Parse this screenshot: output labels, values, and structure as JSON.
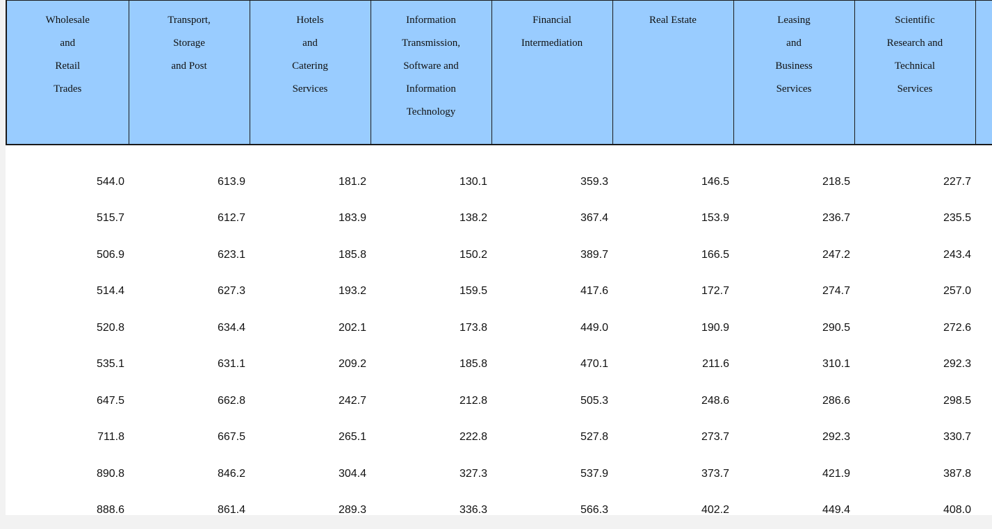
{
  "table": {
    "columns": [
      {
        "key": "wholesale",
        "lines": [
          "Wholesale",
          "and",
          "Retail",
          "Trades"
        ]
      },
      {
        "key": "transport",
        "lines": [
          "Transport,",
          "Storage",
          "and Post"
        ]
      },
      {
        "key": "hotels",
        "lines": [
          "Hotels",
          "and",
          "Catering",
          "Services"
        ]
      },
      {
        "key": "information",
        "lines": [
          "Information",
          "Transmission,",
          "Software and",
          "Information",
          "Technology"
        ]
      },
      {
        "key": "financial",
        "lines": [
          "Financial",
          "Intermediation"
        ]
      },
      {
        "key": "real_estate",
        "lines": [
          "Real Estate"
        ]
      },
      {
        "key": "leasing",
        "lines": [
          "Leasing",
          "and",
          "Business",
          "Services"
        ]
      },
      {
        "key": "scientific",
        "lines": [
          "Scientific",
          "Research and",
          "Technical",
          "Services"
        ]
      }
    ],
    "rows": [
      [
        "544.0",
        "613.9",
        "181.2",
        "130.1",
        "359.3",
        "146.5",
        "218.5",
        "227.7"
      ],
      [
        "515.7",
        "612.7",
        "183.9",
        "138.2",
        "367.4",
        "153.9",
        "236.7",
        "235.5"
      ],
      [
        "506.9",
        "623.1",
        "185.8",
        "150.2",
        "389.7",
        "166.5",
        "247.2",
        "243.4"
      ],
      [
        "514.4",
        "627.3",
        "193.2",
        "159.5",
        "417.6",
        "172.7",
        "274.7",
        "257.0"
      ],
      [
        "520.8",
        "634.4",
        "202.1",
        "173.8",
        "449.0",
        "190.9",
        "290.5",
        "272.6"
      ],
      [
        "535.1",
        "631.1",
        "209.2",
        "185.8",
        "470.1",
        "211.6",
        "310.1",
        "292.3"
      ],
      [
        "647.5",
        "662.8",
        "242.7",
        "212.8",
        "505.3",
        "248.6",
        "286.6",
        "298.5"
      ],
      [
        "711.8",
        "667.5",
        "265.1",
        "222.8",
        "527.8",
        "273.7",
        "292.3",
        "330.7"
      ],
      [
        "890.8",
        "846.2",
        "304.4",
        "327.3",
        "537.9",
        "373.7",
        "421.9",
        "387.8"
      ],
      [
        "888.6",
        "861.4",
        "289.3",
        "336.3",
        "566.3",
        "402.2",
        "449.4",
        "408.0"
      ]
    ]
  }
}
